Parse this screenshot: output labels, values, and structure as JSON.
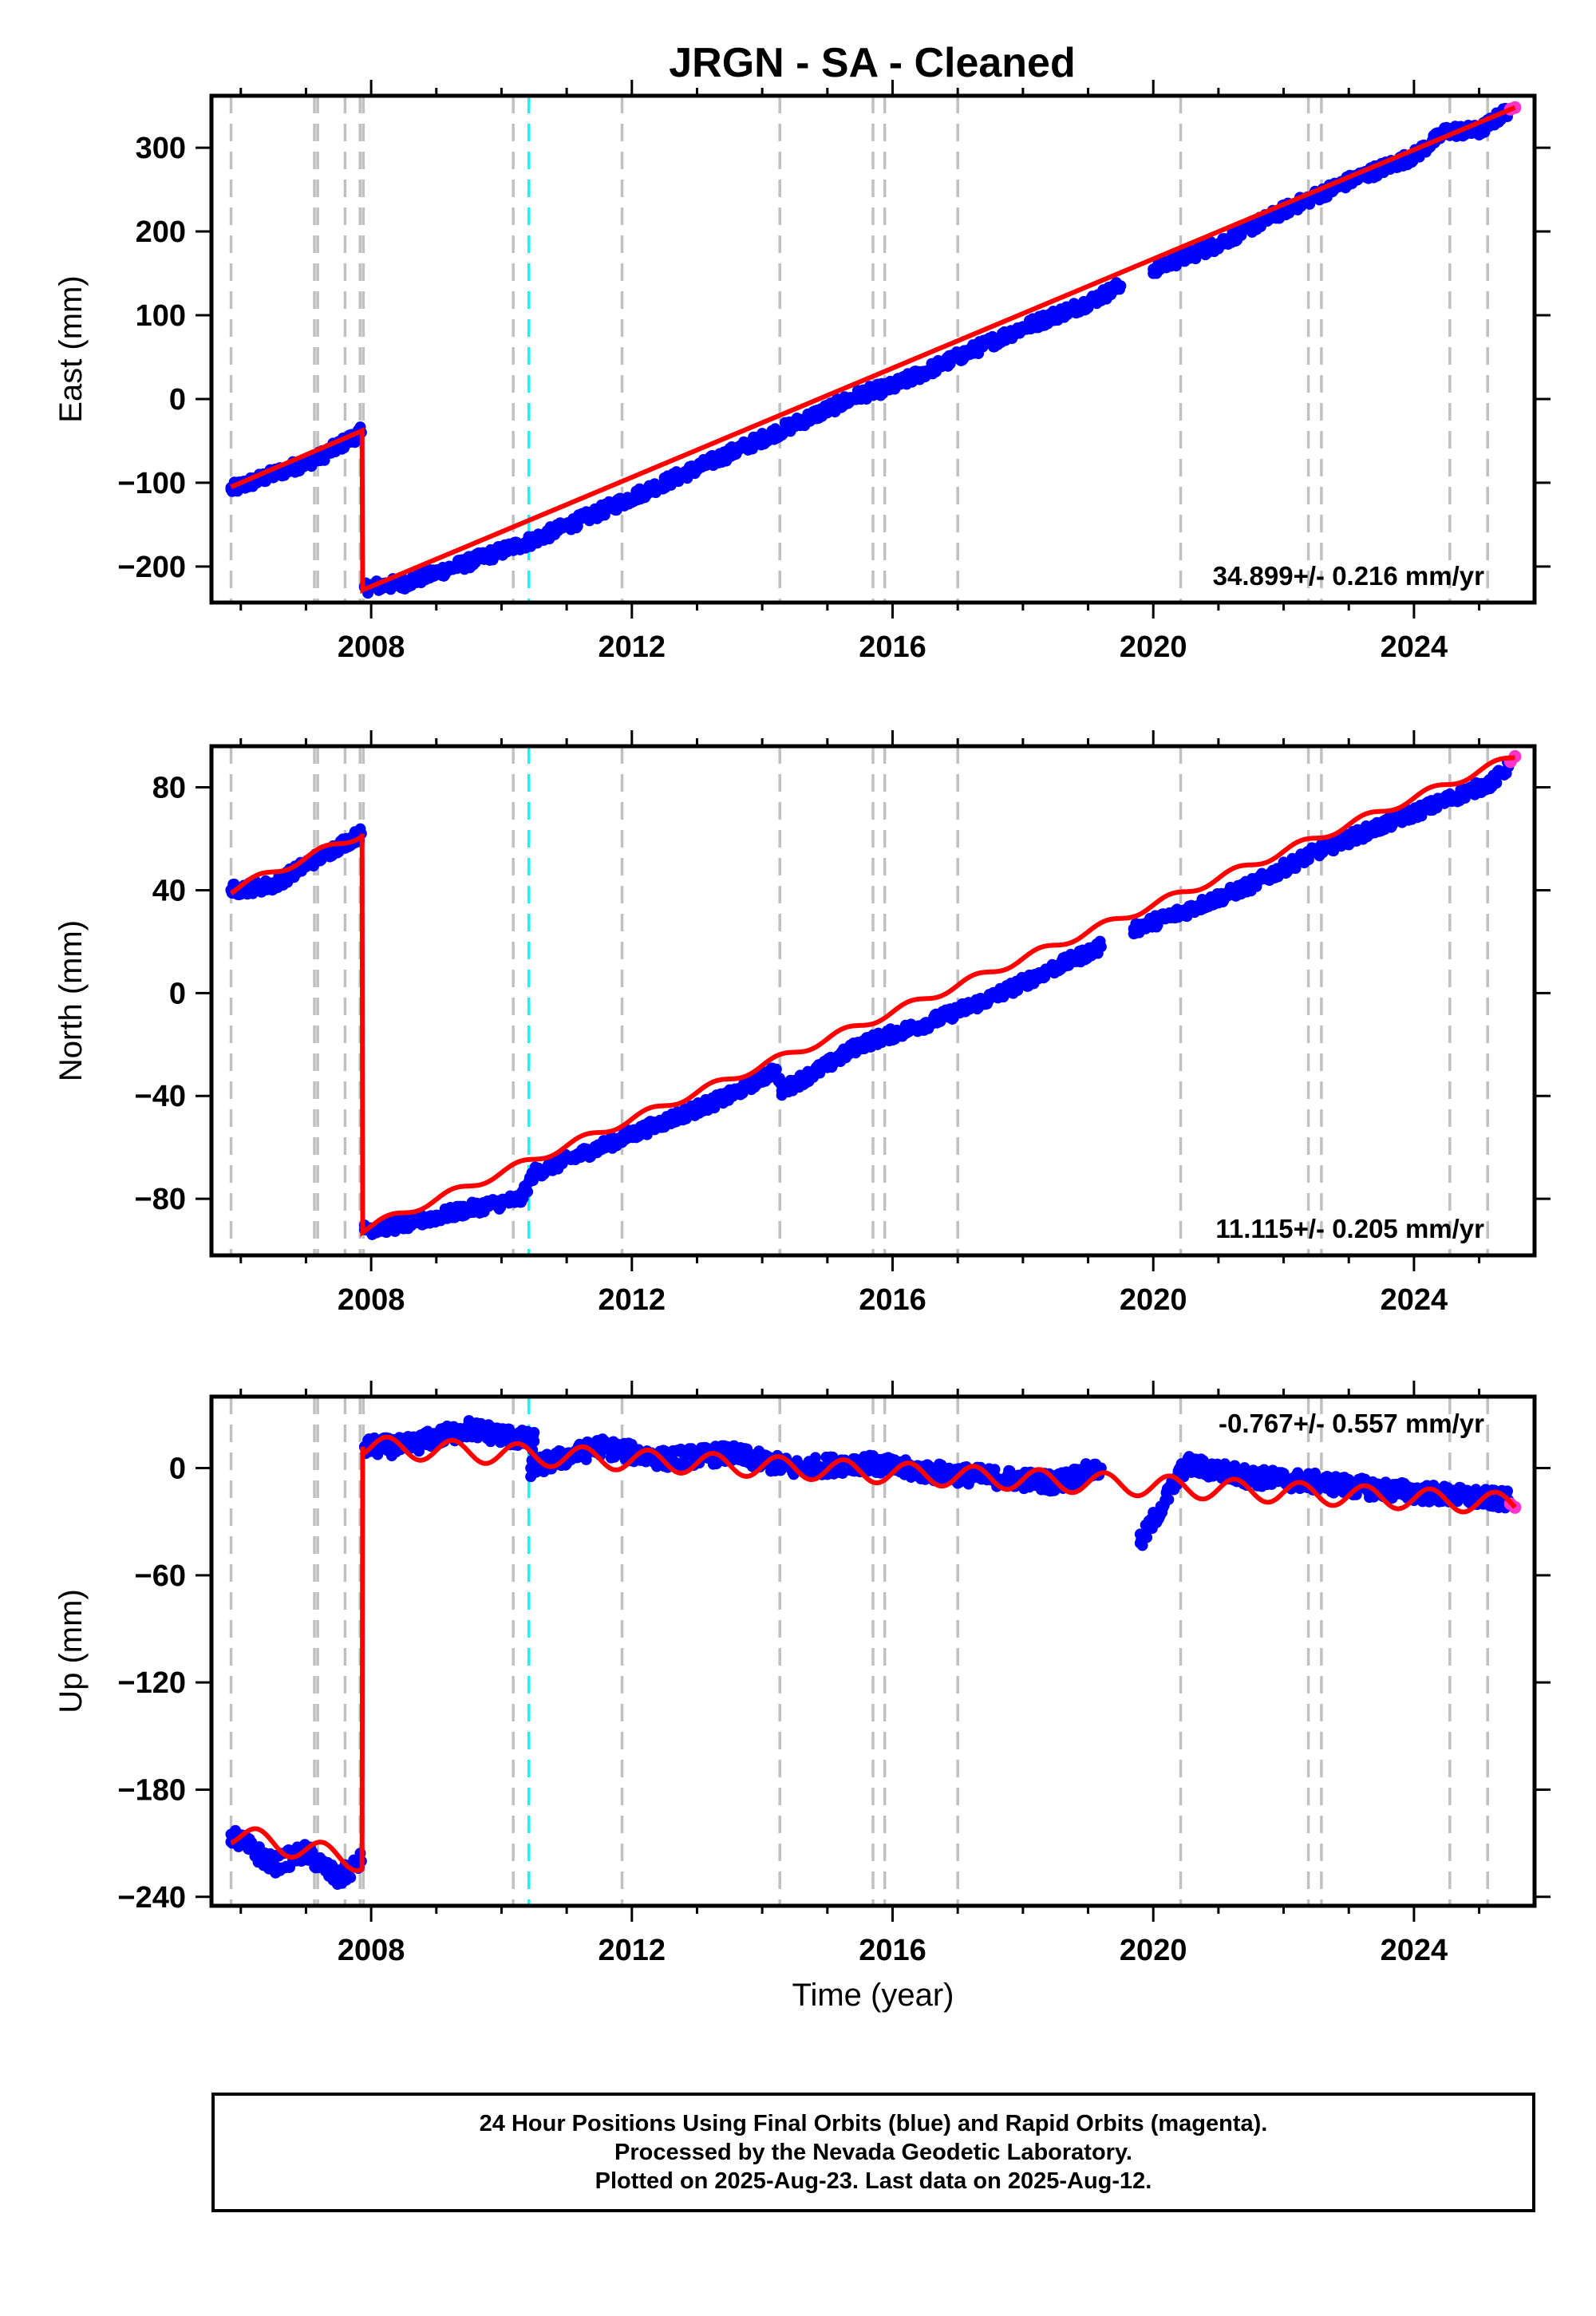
{
  "title": "JRGN  - SA - Cleaned",
  "colors": {
    "final_orbits": "#0000ff",
    "rapid_orbits": "#ff33cc",
    "model": "#ff0000",
    "equipment_change": "#c0c0c0",
    "earthquake": "#00ffff",
    "frame": "#000000"
  },
  "chart_data": [
    {
      "type": "scatter",
      "title": "JRGN  - SA - Cleaned",
      "ylabel": "East (mm)",
      "xlabel": "",
      "xlim": [
        2005.55,
        2025.85
      ],
      "ylim": [
        -243,
        362
      ],
      "x_ticks": [
        2008,
        2012,
        2016,
        2020,
        2024
      ],
      "y_ticks": [
        300,
        200,
        100,
        0,
        -100,
        -200
      ],
      "y_tick_labels": [
        "300",
        "200",
        "100",
        "0",
        "−100",
        "−200"
      ],
      "rate_label": "34.899+/- 0.216 mm/yr",
      "rate_position": "bottom-right",
      "series": [
        {
          "role": "final_orbits",
          "points": [
            [
              2005.85,
              -108
            ],
            [
              2006.5,
              -90
            ],
            [
              2007.2,
              -70
            ],
            [
              2007.85,
              -40
            ],
            [
              2007.9,
              -225
            ],
            [
              2008.5,
              -220
            ],
            [
              2009.5,
              -195
            ],
            [
              2010.5,
              -168
            ],
            [
              2011.5,
              -135
            ],
            [
              2012.5,
              -100
            ],
            [
              2013.5,
              -65
            ],
            [
              2014.5,
              -30
            ],
            [
              2015.5,
              5
            ],
            [
              2016.0,
              15
            ],
            [
              2017.0,
              50
            ],
            [
              2018.0,
              85
            ],
            [
              2019.0,
              115
            ],
            [
              2019.5,
              135
            ],
            [
              2020.0,
              155
            ],
            [
              2021.0,
              185
            ],
            [
              2022.0,
              225
            ],
            [
              2023.0,
              260
            ],
            [
              2024.0,
              290
            ],
            [
              2024.5,
              320
            ],
            [
              2025.0,
              320
            ],
            [
              2025.45,
              345
            ]
          ]
        },
        {
          "role": "rapid_orbits",
          "points": [
            [
              2025.48,
              346
            ],
            [
              2025.55,
              348
            ]
          ]
        },
        {
          "role": "model",
          "points": [
            [
              2005.85,
              -105
            ],
            [
              2007.86,
              -38
            ],
            [
              2007.87,
              -228
            ],
            [
              2025.55,
              348
            ]
          ]
        }
      ],
      "grid": false
    },
    {
      "type": "scatter",
      "ylabel": "North (mm)",
      "xlabel": "",
      "xlim": [
        2005.55,
        2025.85
      ],
      "ylim": [
        -102,
        96
      ],
      "x_ticks": [
        2008,
        2012,
        2016,
        2020,
        2024
      ],
      "y_ticks": [
        80,
        40,
        0,
        -40,
        -80
      ],
      "y_tick_labels": [
        "80",
        "40",
        "0",
        "−40",
        "−80"
      ],
      "rate_label": "11.115+/- 0.205 mm/yr",
      "rate_position": "bottom-right",
      "series": [
        {
          "role": "final_orbits",
          "points": [
            [
              2005.85,
              40
            ],
            [
              2006.5,
              42
            ],
            [
              2007.0,
              50
            ],
            [
              2007.85,
              62
            ],
            [
              2007.9,
              -92
            ],
            [
              2008.5,
              -90
            ],
            [
              2009.5,
              -84
            ],
            [
              2010.3,
              -80
            ],
            [
              2010.5,
              -70
            ],
            [
              2011.5,
              -60
            ],
            [
              2012.5,
              -50
            ],
            [
              2013.5,
              -40
            ],
            [
              2014.2,
              -30
            ],
            [
              2014.3,
              -38
            ],
            [
              2015.0,
              -28
            ],
            [
              2015.5,
              -20
            ],
            [
              2016.5,
              -12
            ],
            [
              2017.5,
              -2
            ],
            [
              2018.5,
              10
            ],
            [
              2019.2,
              18
            ],
            [
              2019.7,
              25
            ],
            [
              2020.5,
              32
            ],
            [
              2021.5,
              42
            ],
            [
              2022.5,
              55
            ],
            [
              2023.5,
              65
            ],
            [
              2024.5,
              75
            ],
            [
              2025.2,
              82
            ],
            [
              2025.45,
              88
            ]
          ]
        },
        {
          "role": "rapid_orbits",
          "points": [
            [
              2025.48,
              90
            ],
            [
              2025.55,
              92
            ]
          ]
        },
        {
          "role": "model",
          "points": [
            [
              2005.85,
              40
            ],
            [
              2007.86,
              62
            ],
            [
              2007.87,
              -92
            ],
            [
              2025.55,
              92
            ]
          ]
        }
      ],
      "grid": false
    },
    {
      "type": "scatter",
      "ylabel": "Up (mm)",
      "xlabel": "Time (year)",
      "xlim": [
        2005.55,
        2025.85
      ],
      "ylim": [
        -245,
        40
      ],
      "x_ticks": [
        2008,
        2012,
        2016,
        2020,
        2024
      ],
      "y_ticks": [
        0,
        -60,
        -120,
        -180,
        -240
      ],
      "y_tick_labels": [
        "0",
        "−60",
        "−120",
        "−180",
        "−240"
      ],
      "rate_label": "-0.767+/- 0.557 mm/yr",
      "rate_position": "top-right",
      "series": [
        {
          "role": "final_orbits",
          "points": [
            [
              2005.85,
              -205
            ],
            [
              2006.5,
              -222
            ],
            [
              2007.0,
              -215
            ],
            [
              2007.5,
              -230
            ],
            [
              2007.85,
              -220
            ],
            [
              2007.9,
              12
            ],
            [
              2008.5,
              12
            ],
            [
              2009.5,
              22
            ],
            [
              2010.5,
              15
            ],
            [
              2010.45,
              0
            ],
            [
              2011.5,
              12
            ],
            [
              2012.5,
              5
            ],
            [
              2013.5,
              8
            ],
            [
              2014.5,
              0
            ],
            [
              2015.5,
              3
            ],
            [
              2016.5,
              -2
            ],
            [
              2017.5,
              -5
            ],
            [
              2018.5,
              -8
            ],
            [
              2019.2,
              0
            ],
            [
              2019.8,
              -42
            ],
            [
              2020.5,
              2
            ],
            [
              2021.5,
              -5
            ],
            [
              2022.5,
              -8
            ],
            [
              2023.5,
              -12
            ],
            [
              2024.5,
              -15
            ],
            [
              2025.45,
              -18
            ]
          ]
        },
        {
          "role": "rapid_orbits",
          "points": [
            [
              2025.48,
              -20
            ],
            [
              2025.55,
              -22
            ]
          ]
        },
        {
          "role": "model",
          "points": [
            [
              2005.85,
              -205
            ],
            [
              2007.86,
              -220
            ],
            [
              2007.87,
              12
            ],
            [
              2025.55,
              -20
            ]
          ]
        }
      ],
      "grid": false
    }
  ],
  "vertical_markers": {
    "equipment_change": [
      2005.85,
      2007.13,
      2007.18,
      2007.6,
      2007.83,
      2007.88,
      2010.18,
      2011.85,
      2014.27,
      2015.7,
      2015.88,
      2017.0,
      2020.42,
      2022.38,
      2022.58,
      2024.55,
      2025.13
    ],
    "earthquake": [
      2010.42
    ]
  },
  "footer": {
    "line1": "24 Hour Positions Using Final Orbits (blue) and Rapid Orbits (magenta).",
    "line2": "Processed by the Nevada Geodetic Laboratory.",
    "line3": "Plotted on 2025-Aug-23. Last data on 2025-Aug-12."
  }
}
